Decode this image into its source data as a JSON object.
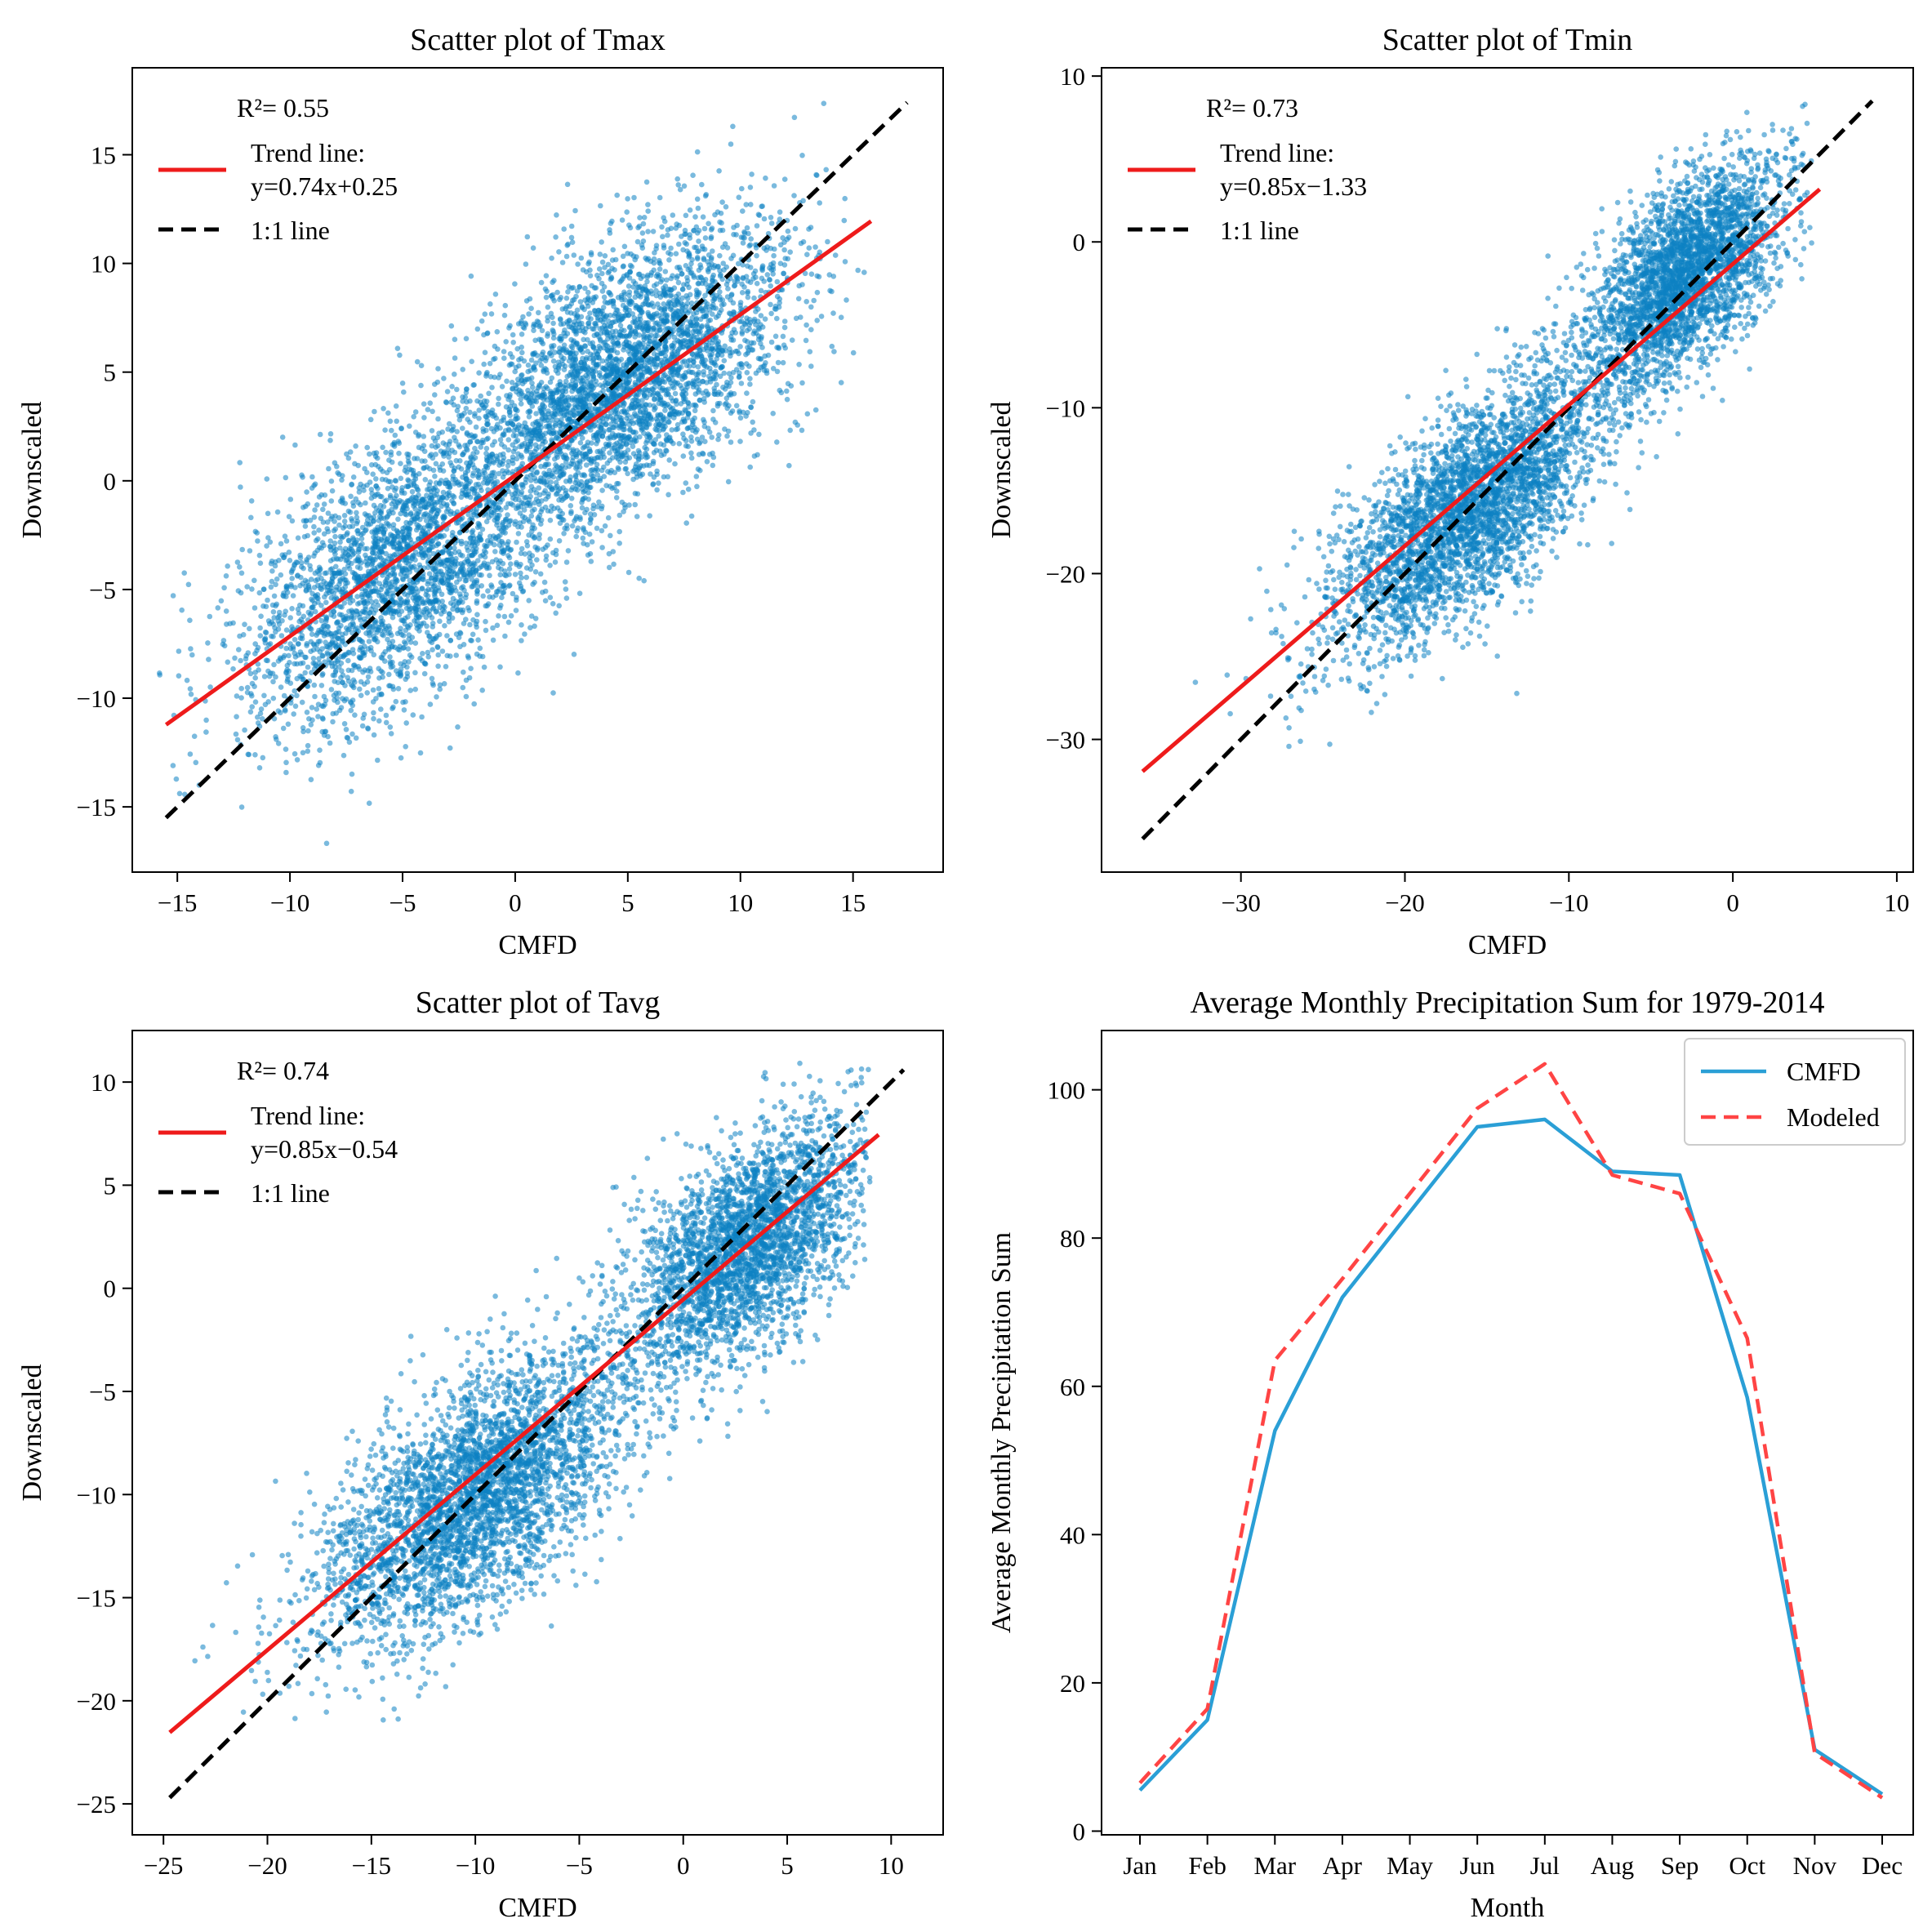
{
  "colors": {
    "scatter": "#0d82c2",
    "trend": "#ee1b1b",
    "identity": "#000000",
    "cmfd_line": "#2a9fd6",
    "modeled_line": "#ff4444"
  },
  "chart_data": [
    {
      "type": "scatter",
      "id": "tmax",
      "title": "Scatter plot of Tmax",
      "xlabel": "CMFD",
      "ylabel": "Downscaled",
      "xlim": [
        -17,
        19
      ],
      "ylim": [
        -18,
        19
      ],
      "xticks": [
        -15,
        -10,
        -5,
        0,
        5,
        10,
        15
      ],
      "yticks": [
        -15,
        -10,
        -5,
        0,
        5,
        10,
        15
      ],
      "r2_text": "R²= 0.55",
      "trend_label_1": "Trend line:",
      "trend_label_2": "y=0.74x+0.25",
      "identity_label": "1:1 line",
      "trend": {
        "slope": 0.74,
        "intercept": 0.25,
        "x_range": [
          -15.5,
          15.8
        ]
      },
      "identity": {
        "x_range": [
          -15.5,
          17.4
        ]
      },
      "cloud": {
        "n_points": 6500,
        "clusters": [
          {
            "cx": -5,
            "cy": -4,
            "weight": 0.45,
            "sx": 3.6,
            "sy": 3.6,
            "rho": 0.55
          },
          {
            "cx": 5,
            "cy": 5,
            "weight": 0.55,
            "sx": 3.6,
            "sy": 3.4,
            "rho": 0.5
          }
        ],
        "x_clip": [
          -16,
          16.5
        ],
        "y_clip": [
          -17,
          17.5
        ]
      }
    },
    {
      "type": "scatter",
      "id": "tmin",
      "title": "Scatter plot of Tmin",
      "xlabel": "CMFD",
      "ylabel": "Downscaled",
      "xlim": [
        -38.5,
        11
      ],
      "ylim": [
        -38,
        10.5
      ],
      "xticks": [
        -30,
        -20,
        -10,
        0,
        10
      ],
      "yticks": [
        -30,
        -20,
        -10,
        0,
        10
      ],
      "r2_text": "R²= 0.73",
      "trend_label_1": "Trend line:",
      "trend_label_2": "y=0.85x−1.33",
      "identity_label": "1:1 line",
      "trend": {
        "slope": 0.85,
        "intercept": -1.33,
        "x_range": [
          -36,
          5.3
        ]
      },
      "identity": {
        "x_range": [
          -36,
          8.5
        ]
      },
      "cloud": {
        "n_points": 6500,
        "clusters": [
          {
            "cx": -16,
            "cy": -16,
            "weight": 0.55,
            "sx": 4.2,
            "sy": 4.2,
            "rho": 0.7
          },
          {
            "cx": -3,
            "cy": -2,
            "weight": 0.45,
            "sx": 3.0,
            "sy": 3.4,
            "rho": 0.6
          }
        ],
        "x_clip": [
          -36,
          5
        ],
        "y_clip": [
          -31,
          8.5
        ]
      }
    },
    {
      "type": "scatter",
      "id": "tavg",
      "title": "Scatter plot of Tavg",
      "xlabel": "CMFD",
      "ylabel": "Downscaled",
      "xlim": [
        -26.5,
        12.5
      ],
      "ylim": [
        -26.5,
        12.5
      ],
      "xticks": [
        -25,
        -20,
        -15,
        -10,
        -5,
        0,
        5,
        10
      ],
      "yticks": [
        -25,
        -20,
        -15,
        -10,
        -5,
        0,
        5,
        10
      ],
      "r2_text": "R²= 0.74",
      "trend_label_1": "Trend line:",
      "trend_label_2": "y=0.85x−0.54",
      "identity_label": "1:1 line",
      "trend": {
        "slope": 0.85,
        "intercept": -0.54,
        "x_range": [
          -24.7,
          9.4
        ]
      },
      "identity": {
        "x_range": [
          -24.7,
          10.6
        ]
      },
      "cloud": {
        "n_points": 6500,
        "clusters": [
          {
            "cx": -10,
            "cy": -10,
            "weight": 0.55,
            "sx": 3.8,
            "sy": 3.8,
            "rho": 0.65
          },
          {
            "cx": 3,
            "cy": 2,
            "weight": 0.45,
            "sx": 2.8,
            "sy": 3.0,
            "rho": 0.55
          }
        ],
        "x_clip": [
          -25,
          9
        ],
        "y_clip": [
          -21,
          11
        ]
      }
    },
    {
      "type": "line",
      "id": "precip",
      "title": "Average Monthly Precipitation Sum for 1979-2014",
      "xlabel": "Month",
      "ylabel": "Average Monthly Precipitation Sum",
      "categories": [
        "Jan",
        "Feb",
        "Mar",
        "Apr",
        "May",
        "Jun",
        "Jul",
        "Aug",
        "Sep",
        "Oct",
        "Nov",
        "Dec"
      ],
      "ylim": [
        -0.5,
        108
      ],
      "yticks": [
        0,
        20,
        40,
        60,
        80,
        100
      ],
      "legend_position": "top-right",
      "series": [
        {
          "name": "CMFD",
          "style": "solid",
          "values": [
            5.5,
            15,
            54,
            72,
            83.5,
            95,
            96,
            89,
            88.5,
            58.5,
            11,
            5
          ]
        },
        {
          "name": "Modeled",
          "style": "dashed",
          "values": [
            6.5,
            16.5,
            63.5,
            74.5,
            86,
            97.5,
            103.5,
            88.5,
            86,
            66.5,
            10.5,
            4.5
          ]
        }
      ]
    }
  ]
}
